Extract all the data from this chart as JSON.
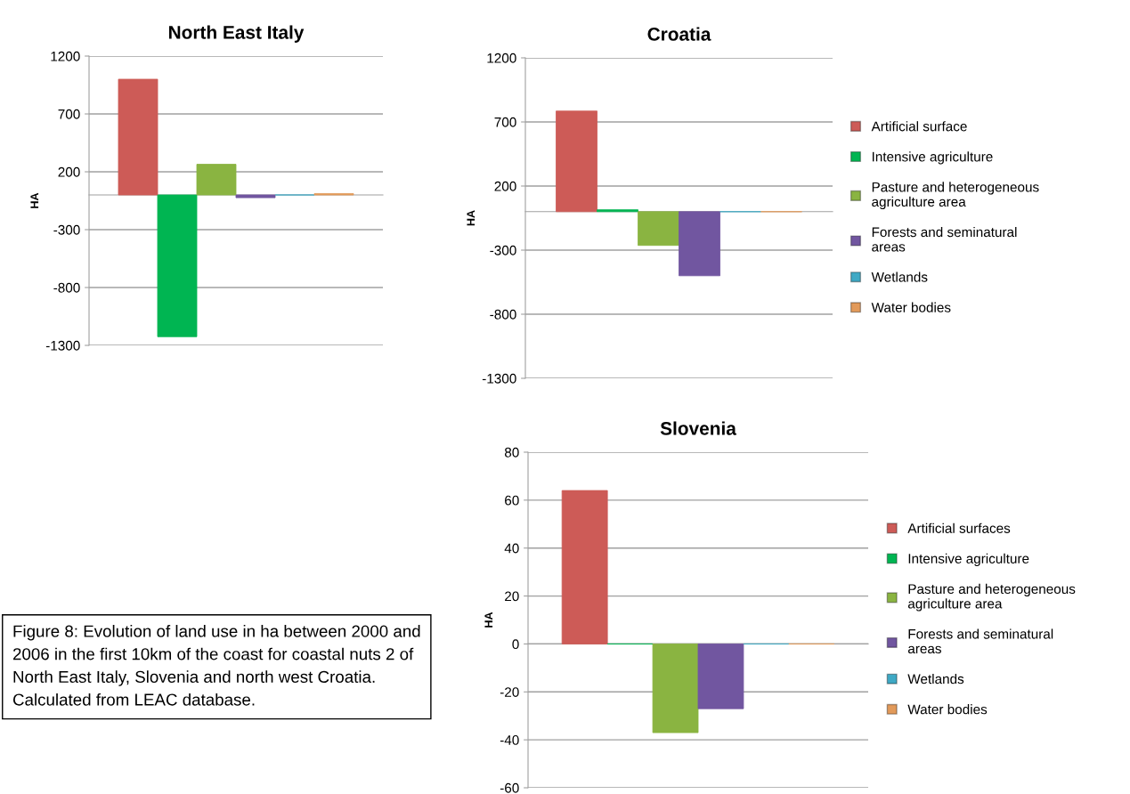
{
  "chart_data": [
    {
      "type": "bar",
      "title": "North East Italy",
      "ylabel": "HA",
      "categories": [
        null
      ],
      "ylim": [
        -1300,
        1200
      ],
      "yticks": [
        -1300,
        -800,
        -300,
        200,
        700,
        1200
      ],
      "grid": "y",
      "legend": false,
      "series": [
        {
          "color": "#cd5b57",
          "values": [
            1000
          ]
        },
        {
          "color": "#00b552",
          "values": [
            -1225
          ]
        },
        {
          "color": "#8ab441",
          "values": [
            265
          ]
        },
        {
          "color": "#7156a0",
          "values": [
            -24
          ]
        },
        {
          "color": "#3fa9c5",
          "values": [
            0
          ]
        },
        {
          "color": "#e29a5a",
          "values": [
            12
          ]
        }
      ],
      "annotations": [
        "Figure 8: Evolution of land use in ha between 2000 and 2006 in the first 10km of the coast for coastal nuts 2 of North East Italy, Slovenia and north west Croatia. Calculated from LEAC database."
      ]
    },
    {
      "type": "bar",
      "title": "Croatia",
      "ylabel": "HA",
      "categories": [
        null
      ],
      "ylim": [
        -1300,
        1200
      ],
      "yticks": [
        -1300,
        -800,
        -300,
        200,
        700,
        1200
      ],
      "grid": "y",
      "legend": "right",
      "series": [
        {
          "name": "Artificial surface",
          "color": "#cd5b57",
          "values": [
            785
          ]
        },
        {
          "name": "Intensive agriculture",
          "color": "#00b552",
          "values": [
            15
          ]
        },
        {
          "name": "Pasture and heterogeneous\nagriculture area",
          "color": "#8ab441",
          "values": [
            -263
          ]
        },
        {
          "name": "Forests and seminatural\nareas",
          "color": "#7156a0",
          "values": [
            -500
          ]
        },
        {
          "name": "Wetlands",
          "color": "#3fa9c5",
          "values": [
            0
          ]
        },
        {
          "name": "Water bodies",
          "color": "#e29a5a",
          "values": [
            0
          ]
        }
      ]
    },
    {
      "type": "bar",
      "title": "Slovenia",
      "ylabel": "HA",
      "categories": [
        null
      ],
      "ylim": [
        -60,
        80
      ],
      "yticks": [
        -60,
        -40,
        -20,
        0,
        20,
        40,
        60,
        80
      ],
      "grid": "y",
      "legend": "right",
      "series": [
        {
          "name": "Artificial surfaces",
          "color": "#cd5b57",
          "values": [
            64
          ]
        },
        {
          "name": "Intensive agriculture",
          "color": "#00b552",
          "values": [
            0
          ]
        },
        {
          "name": "Pasture and heterogeneous\nagriculture area",
          "color": "#8ab441",
          "values": [
            -37
          ]
        },
        {
          "name": "Forests and seminatural\nareas",
          "color": "#7156a0",
          "values": [
            -27
          ]
        },
        {
          "name": "Wetlands",
          "color": "#3fa9c5",
          "values": [
            0
          ]
        },
        {
          "name": "Water bodies",
          "color": "#e29a5a",
          "values": [
            0
          ]
        }
      ]
    }
  ]
}
